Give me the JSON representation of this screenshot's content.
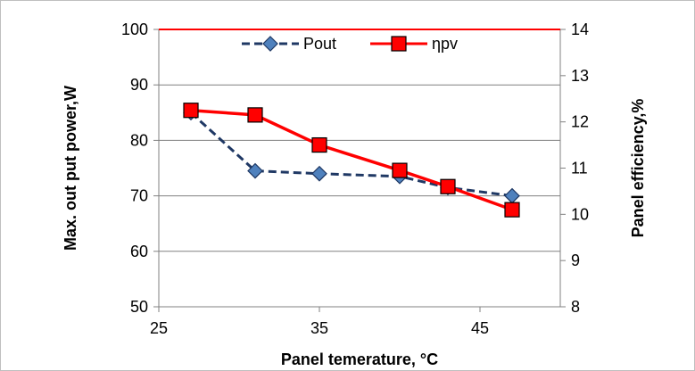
{
  "chart_data": {
    "type": "line",
    "xlabel": "Panel temerature, °C",
    "ylabel_left": "Max. out put power,W",
    "ylabel_right": "Panel efficiency,%",
    "xlim": [
      25,
      50
    ],
    "x_ticks": [
      25,
      35,
      45
    ],
    "ylim_left": [
      50,
      100
    ],
    "y_ticks_left": [
      50,
      60,
      70,
      80,
      90,
      100
    ],
    "ylim_right": [
      8,
      14
    ],
    "y_ticks_right": [
      8,
      9,
      10,
      11,
      12,
      13,
      14
    ],
    "grid": "horizontal",
    "legend_position": "top",
    "series": [
      {
        "name": "Pout",
        "axis": "left",
        "color": "#1f3864",
        "line_style": "dashed",
        "marker": "diamond",
        "x": [
          27,
          31,
          35,
          40,
          43,
          47
        ],
        "values": [
          85,
          74.5,
          74,
          73.5,
          71.5,
          70
        ]
      },
      {
        "name": "ηpv",
        "axis": "right",
        "color": "#ff0000",
        "line_style": "solid",
        "marker": "square",
        "x": [
          27,
          31,
          35,
          40,
          43,
          47
        ],
        "values": [
          12.25,
          12.15,
          11.5,
          10.95,
          10.6,
          10.1
        ]
      }
    ]
  }
}
